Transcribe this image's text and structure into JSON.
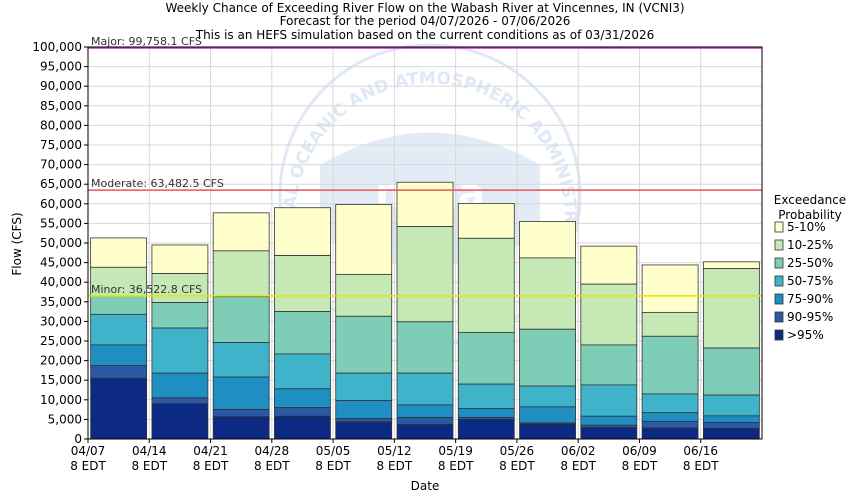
{
  "chart_data": {
    "type": "bar",
    "title": [
      "Weekly Chance of Exceeding River Flow on the Wabash River at Vincennes, IN (VCNI3)",
      "Forecast for the period 04/07/2026 - 07/06/2026",
      "This is an HEFS simulation based on the current conditions as of 03/31/2026"
    ],
    "xlabel": "Date",
    "ylabel": "Flow (CFS)",
    "ylim": [
      0,
      100000
    ],
    "yticks": [
      0,
      5000,
      10000,
      15000,
      20000,
      25000,
      30000,
      35000,
      40000,
      45000,
      50000,
      55000,
      60000,
      65000,
      70000,
      75000,
      80000,
      85000,
      90000,
      95000,
      100000
    ],
    "ytick_labels": [
      "0",
      "5,000",
      "10,000",
      "15,000",
      "20,000",
      "25,000",
      "30,000",
      "35,000",
      "40,000",
      "45,000",
      "50,000",
      "55,000",
      "60,000",
      "65,000",
      "70,000",
      "75,000",
      "80,000",
      "85,000",
      "90,000",
      "95,000",
      "100,000"
    ],
    "xtick_labels": [
      [
        "04/07",
        "8 EDT"
      ],
      [
        "04/14",
        "8 EDT"
      ],
      [
        "04/21",
        "8 EDT"
      ],
      [
        "04/28",
        "8 EDT"
      ],
      [
        "05/05",
        "8 EDT"
      ],
      [
        "05/12",
        "8 EDT"
      ],
      [
        "05/19",
        "8 EDT"
      ],
      [
        "05/26",
        "8 EDT"
      ],
      [
        "06/02",
        "8 EDT"
      ],
      [
        "06/09",
        "8 EDT"
      ],
      [
        "06/16",
        "8 EDT"
      ]
    ],
    "num_x_slots": 11,
    "grid": true,
    "legend": {
      "title": [
        "Exceedance",
        "Probability"
      ],
      "placement": "right"
    },
    "series": [
      {
        "name": ">95%",
        "color": "#0c2a84",
        "values": [
          15500,
          9000,
          5700,
          5800,
          4400,
          3700,
          5000,
          3800,
          2900,
          2800,
          2700
        ]
      },
      {
        "name": "90-95%",
        "color": "#2a5aa6",
        "values": [
          18700,
          10500,
          7500,
          8000,
          5200,
          5500,
          5500,
          4100,
          3500,
          4500,
          4200
        ]
      },
      {
        "name": "75-90%",
        "color": "#1f8fc3",
        "values": [
          24000,
          16800,
          15800,
          12800,
          9800,
          8700,
          7800,
          8200,
          5800,
          6700,
          5900
        ]
      },
      {
        "name": "50-75%",
        "color": "#3fb3c9",
        "values": [
          31800,
          28300,
          24600,
          21700,
          16800,
          16800,
          14000,
          13500,
          13800,
          11500,
          11200
        ]
      },
      {
        "name": "25-50%",
        "color": "#7ecdb7",
        "values": [
          36500,
          34800,
          36300,
          32500,
          31300,
          29900,
          27200,
          28000,
          24000,
          26200,
          23200
        ]
      },
      {
        "name": "10-25%",
        "color": "#c5e8b5",
        "values": [
          43800,
          42200,
          48000,
          46800,
          42000,
          54200,
          51200,
          46200,
          39500,
          32300,
          43500
        ]
      },
      {
        "name": "5-10%",
        "color": "#ffffcc",
        "values": [
          51300,
          49500,
          57700,
          59000,
          59800,
          65500,
          60100,
          55500,
          49200,
          44400,
          45200
        ]
      }
    ],
    "thresholds": [
      {
        "label": "Major: 99,758.1 CFS",
        "value": 99758.1,
        "color": "#cc33cc"
      },
      {
        "label": "Moderate: 63,482.5 CFS",
        "value": 63482.5,
        "color": "#e8555a"
      },
      {
        "label": "Minor: 36,522.8 CFS",
        "value": 36522.8,
        "color": "#e6e600"
      }
    ]
  },
  "watermark": {
    "text": "NATIONAL OCEANIC AND ATMOSPHERIC ADMINISTRATION",
    "logo_text": "noaa",
    "color": "#dfe9f5"
  }
}
